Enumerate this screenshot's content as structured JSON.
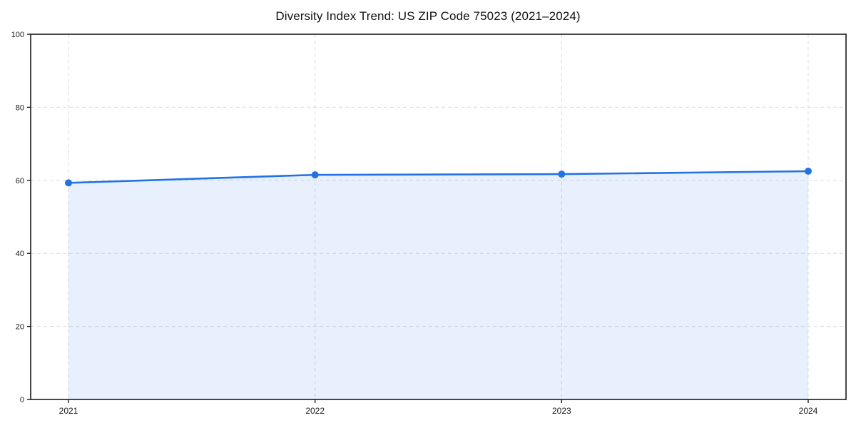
{
  "chart_data": {
    "type": "line",
    "title": "Diversity Index Trend: US ZIP Code 75023 (2021–2024)",
    "x": [
      2021,
      2022,
      2023,
      2024
    ],
    "x_tick_labels": [
      "2021",
      "2022",
      "2023",
      "2024"
    ],
    "series": [
      {
        "name": "Diversity Index",
        "values": [
          59.3,
          61.5,
          61.7,
          62.5
        ]
      }
    ],
    "xlabel": "",
    "ylabel": "",
    "ylim": [
      0,
      100
    ],
    "yticks": [
      0,
      20,
      40,
      60,
      80,
      100
    ],
    "y_tick_labels": [
      "0",
      "20",
      "40",
      "60",
      "80",
      "100"
    ],
    "grid": "dashed",
    "legend": "none",
    "area_fill": true,
    "marker": "circle",
    "colors": {
      "line": "#2272e2",
      "marker": "#2272e2",
      "area_fill": "rgba(34,114,226,0.11)",
      "grid": "#dcdcdc",
      "frame": "#1a1a1a",
      "tick_text": "#1a1a1a",
      "background": "#ffffff"
    }
  }
}
